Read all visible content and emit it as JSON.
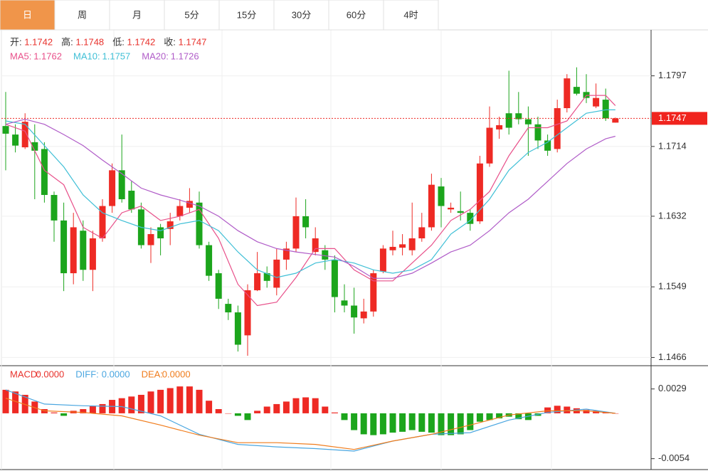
{
  "tabs": [
    "日",
    "周",
    "月",
    "5分",
    "15分",
    "30分",
    "60分",
    "4时"
  ],
  "active_tab": 0,
  "chart_data": [
    {
      "type": "candlestick",
      "legend": [
        {
          "label": "开:",
          "value": 1.1742
        },
        {
          "label": "高:",
          "value": 1.1748
        },
        {
          "label": "低:",
          "value": 1.1742
        },
        {
          "label": "收:",
          "value": 1.1747
        }
      ],
      "legend_value_color": "#e8322c",
      "up_color": "#ee2a24",
      "down_color": "#1ca51c",
      "ylim": [
        1.1458,
        1.1851
      ],
      "yticks": [
        1.1797,
        1.1714,
        1.1632,
        1.1549,
        1.1466
      ],
      "grid": true,
      "last_price": 1.1747,
      "ohlc": [
        [
          1.1738,
          1.1778,
          1.1686,
          1.1729
        ],
        [
          1.1728,
          1.174,
          1.1707,
          1.1715
        ],
        [
          1.1713,
          1.1753,
          1.1711,
          1.1743
        ],
        [
          1.1719,
          1.174,
          1.1652,
          1.1709
        ],
        [
          1.1711,
          1.1719,
          1.1648,
          1.1657
        ],
        [
          1.1657,
          1.1661,
          1.1602,
          1.1627
        ],
        [
          1.1627,
          1.1648,
          1.1544,
          1.1565
        ],
        [
          1.1565,
          1.1636,
          1.1552,
          1.1619
        ],
        [
          1.1615,
          1.1627,
          1.1556,
          1.1569
        ],
        [
          1.1569,
          1.1615,
          1.1544,
          1.1606
        ],
        [
          1.1606,
          1.1652,
          1.1602,
          1.1644
        ],
        [
          1.1644,
          1.1694,
          1.1636,
          1.1686
        ],
        [
          1.1686,
          1.1728,
          1.1648,
          1.1652
        ],
        [
          1.1662,
          1.1673,
          1.1636,
          1.164
        ],
        [
          1.164,
          1.1648,
          1.1594,
          1.1598
        ],
        [
          1.1598,
          1.1619,
          1.1577,
          1.1611
        ],
        [
          1.1619,
          1.1623,
          1.1586,
          1.1606
        ],
        [
          1.1617,
          1.1636,
          1.1598,
          1.1626
        ],
        [
          1.1632,
          1.1652,
          1.1627,
          1.1644
        ],
        [
          1.1642,
          1.1665,
          1.1636,
          1.165
        ],
        [
          1.1648,
          1.1661,
          1.1594,
          1.1598
        ],
        [
          1.1598,
          1.1602,
          1.1556,
          1.1562
        ],
        [
          1.1565,
          1.1569,
          1.1523,
          1.1535
        ],
        [
          1.1529,
          1.1535,
          1.151,
          1.1519
        ],
        [
          1.1519,
          1.1527,
          1.1473,
          1.1481
        ],
        [
          1.1492,
          1.1552,
          1.1468,
          1.1545
        ],
        [
          1.1545,
          1.159,
          1.1544,
          1.1565
        ],
        [
          1.1565,
          1.1573,
          1.1548,
          1.1556
        ],
        [
          1.1548,
          1.1594,
          1.1539,
          1.1581
        ],
        [
          1.1581,
          1.1602,
          1.1569,
          1.1594
        ],
        [
          1.1594,
          1.1654,
          1.159,
          1.1632
        ],
        [
          1.1632,
          1.1652,
          1.1606,
          1.1619
        ],
        [
          1.159,
          1.1619,
          1.1586,
          1.1606
        ],
        [
          1.1592,
          1.1598,
          1.1569,
          1.1581
        ],
        [
          1.1581,
          1.1586,
          1.1519,
          1.1537
        ],
        [
          1.1533,
          1.1552,
          1.1519,
          1.1527
        ],
        [
          1.1527,
          1.1548,
          1.1494,
          1.1513
        ],
        [
          1.1512,
          1.1535,
          1.1506,
          1.152
        ],
        [
          1.152,
          1.1569,
          1.1514,
          1.1565
        ],
        [
          1.1567,
          1.1598,
          1.1565,
          1.1594
        ],
        [
          1.1592,
          1.1615,
          1.1586,
          1.1596
        ],
        [
          1.1595,
          1.1611,
          1.1586,
          1.1599
        ],
        [
          1.1592,
          1.1648,
          1.1586,
          1.1606
        ],
        [
          1.1606,
          1.1636,
          1.1602,
          1.1619
        ],
        [
          1.1619,
          1.1682,
          1.1615,
          1.1669
        ],
        [
          1.1667,
          1.1677,
          1.1619,
          1.1644
        ],
        [
          1.164,
          1.1648,
          1.1636,
          1.1642
        ],
        [
          1.1638,
          1.1661,
          1.1627,
          1.1636
        ],
        [
          1.1636,
          1.164,
          1.1615,
          1.1623
        ],
        [
          1.1626,
          1.1703,
          1.1623,
          1.1694
        ],
        [
          1.1694,
          1.1761,
          1.169,
          1.1736
        ],
        [
          1.1734,
          1.1749,
          1.1723,
          1.1739
        ],
        [
          1.1753,
          1.1803,
          1.1728,
          1.1736
        ],
        [
          1.1753,
          1.1778,
          1.174,
          1.1746
        ],
        [
          1.1746,
          1.1761,
          1.1703,
          1.174
        ],
        [
          1.174,
          1.1749,
          1.1711,
          1.1721
        ],
        [
          1.1721,
          1.1728,
          1.1703,
          1.1709
        ],
        [
          1.1711,
          1.1769,
          1.1707,
          1.1759
        ],
        [
          1.1759,
          1.1799,
          1.1754,
          1.1794
        ],
        [
          1.1784,
          1.1807,
          1.1774,
          1.1776
        ],
        [
          1.1778,
          1.1799,
          1.1765,
          1.1771
        ],
        [
          1.1761,
          1.1788,
          1.1759,
          1.1771
        ],
        [
          1.1769,
          1.1782,
          1.1744,
          1.1747
        ],
        [
          1.1742,
          1.1748,
          1.1742,
          1.1747
        ]
      ],
      "ma": [
        {
          "name": "MA5:",
          "value": 1.1762,
          "color": "#e8508a",
          "x": [
            0,
            2,
            4,
            6,
            8,
            10,
            12,
            14,
            16,
            18,
            20,
            22,
            24,
            26,
            28,
            30,
            32,
            34,
            36,
            38,
            40,
            42,
            44,
            46,
            48,
            50,
            52,
            54,
            56,
            58,
            60,
            62,
            63
          ],
          "values": [
            1.174,
            1.1732,
            1.1686,
            1.1669,
            1.1619,
            1.1606,
            1.1636,
            1.1644,
            1.1627,
            1.1632,
            1.164,
            1.1606,
            1.1552,
            1.1527,
            1.1531,
            1.156,
            1.1594,
            1.1594,
            1.1569,
            1.1556,
            1.1556,
            1.1577,
            1.1598,
            1.1627,
            1.164,
            1.1661,
            1.1703,
            1.1736,
            1.1736,
            1.1744,
            1.1774,
            1.1774,
            1.1762
          ]
        },
        {
          "name": "MA10:",
          "value": 1.1757,
          "color": "#3fbfd6",
          "x": [
            0,
            2,
            4,
            6,
            8,
            10,
            12,
            14,
            16,
            18,
            20,
            22,
            24,
            26,
            28,
            30,
            32,
            34,
            36,
            38,
            40,
            42,
            44,
            46,
            48,
            50,
            52,
            54,
            56,
            58,
            60,
            62,
            63
          ],
          "values": [
            1.1744,
            1.174,
            1.1715,
            1.169,
            1.1657,
            1.1636,
            1.1627,
            1.1619,
            1.1615,
            1.1623,
            1.1627,
            1.1615,
            1.159,
            1.1569,
            1.156,
            1.1565,
            1.1577,
            1.1581,
            1.1577,
            1.1569,
            1.1565,
            1.1569,
            1.1581,
            1.1611,
            1.1627,
            1.1652,
            1.1686,
            1.1707,
            1.1719,
            1.1736,
            1.1753,
            1.1757,
            1.1757
          ]
        },
        {
          "name": "MA20:",
          "value": 1.1726,
          "color": "#b05cc8",
          "x": [
            0,
            2,
            4,
            6,
            8,
            10,
            12,
            14,
            16,
            18,
            20,
            22,
            24,
            26,
            28,
            30,
            32,
            34,
            36,
            38,
            40,
            42,
            44,
            46,
            48,
            50,
            52,
            54,
            56,
            58,
            60,
            62,
            63
          ],
          "values": [
            1.174,
            1.1746,
            1.174,
            1.1728,
            1.1715,
            1.1698,
            1.1682,
            1.1665,
            1.1657,
            1.1651,
            1.1644,
            1.1632,
            1.1615,
            1.1602,
            1.1594,
            1.159,
            1.1587,
            1.1584,
            1.1573,
            1.1559,
            1.1559,
            1.1565,
            1.1577,
            1.159,
            1.1598,
            1.1615,
            1.1636,
            1.1652,
            1.1673,
            1.1694,
            1.1711,
            1.1723,
            1.1726
          ]
        }
      ]
    },
    {
      "type": "macd",
      "ylim": [
        -0.0067,
        0.0055
      ],
      "yticks": [
        0.0029,
        -0.0054
      ],
      "up_color": "#ee2a24",
      "down_color": "#1ca51c",
      "series": [
        {
          "name": "MACD:",
          "value": 0,
          "value_label": "0.0000",
          "color": "#e8322c",
          "values": [
            0.0028,
            0.0026,
            0.0022,
            0.0014,
            0.0005,
            0.0001,
            -0.0003,
            0.0003,
            0.0005,
            0.0009,
            0.0011,
            0.0016,
            0.0018,
            0.002,
            0.0022,
            0.0026,
            0.0028,
            0.003,
            0.0032,
            0.0032,
            0.0028,
            0.0015,
            0.0005,
            0.0,
            -0.0003,
            -0.0008,
            0.0003,
            0.0008,
            0.0011,
            0.0014,
            0.0018,
            0.0019,
            0.0018,
            0.0008,
            0.0001,
            -0.0008,
            -0.002,
            -0.0025,
            -0.0026,
            -0.0025,
            -0.0023,
            -0.0022,
            -0.002,
            -0.0022,
            -0.0023,
            -0.0026,
            -0.0026,
            -0.0025,
            -0.002,
            -0.001,
            -0.0008,
            -0.0006,
            -0.0004,
            -0.0007,
            -0.0008,
            -0.0003,
            0.0007,
            0.0009,
            0.0008,
            0.0006,
            0.0004,
            0.0003,
            0.0001,
            0.0
          ]
        },
        {
          "name": "DIFF:",
          "value": 0,
          "value_label": "0.0000",
          "color": "#4aa6e0",
          "x": [
            0,
            4,
            8,
            12,
            16,
            20,
            24,
            28,
            32,
            36,
            40,
            44,
            48,
            52,
            56,
            60,
            63
          ],
          "values": [
            0.0028,
            0.0011,
            0.0009,
            0.0008,
            -0.0003,
            -0.0025,
            -0.0037,
            -0.004,
            -0.0042,
            -0.0045,
            -0.0033,
            -0.0025,
            -0.0023,
            -0.0008,
            0.0001,
            0.0005,
            0.0
          ]
        },
        {
          "name": "DEA:",
          "value": 0,
          "value_label": "0.0000",
          "color": "#f07c1c",
          "x": [
            0,
            4,
            8,
            12,
            16,
            20,
            24,
            28,
            32,
            36,
            40,
            44,
            48,
            52,
            56,
            60,
            63
          ],
          "values": [
            0.0018,
            0.0003,
            0.0001,
            -0.0003,
            -0.0014,
            -0.0026,
            -0.0035,
            -0.0035,
            -0.0037,
            -0.0043,
            -0.0033,
            -0.0025,
            -0.0014,
            -0.0002,
            0.0003,
            0.0003,
            0.0
          ]
        }
      ]
    }
  ]
}
